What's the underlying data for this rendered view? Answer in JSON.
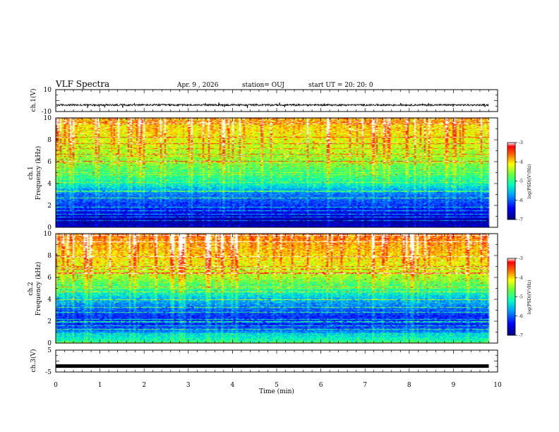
{
  "header": {
    "title": "VLF Spectra",
    "date": "Apr. 9 , 2026",
    "station": "station= OUJ",
    "start": "start UT = 20: 20: 0"
  },
  "colors": {
    "scale": [
      "#00007f",
      "#0000ff",
      "#0080ff",
      "#00ffff",
      "#80ff80",
      "#ffff00",
      "#ff8000",
      "#ff0000",
      "#ffffff"
    ]
  },
  "chart_data": [
    {
      "type": "line",
      "panel": "waveform-ch1",
      "ylabel": "ch.1(V)",
      "ylim": [
        -10,
        10
      ],
      "yticks": [
        "10",
        "-10"
      ],
      "xlim": [
        0,
        10
      ],
      "description_values": {
        "baseline": -4,
        "amplitude_range": [
          -5.5,
          -2
        ]
      }
    },
    {
      "type": "heatmap",
      "panel": "spectrogram-ch1",
      "ylabel": "ch.1 Frequency (kHz)",
      "ylabel_lines": [
        "ch.1",
        "Frequency (kHz)"
      ],
      "ylim": [
        0,
        10
      ],
      "yticks": [
        "0",
        "2",
        "4",
        "6",
        "8",
        "10"
      ],
      "xlim": [
        0,
        10
      ],
      "data_end_min": 9.8,
      "colorbar": {
        "label": "log(PSD)(V²/Hz)",
        "ticks": [
          "-3",
          "-4",
          "-5",
          "-6",
          "-7"
        ],
        "range": [
          -7,
          -3
        ]
      },
      "profile_khz": [
        0,
        0.5,
        1,
        1.5,
        2,
        2.5,
        3,
        3.5,
        4,
        5,
        6,
        7,
        8,
        9,
        10
      ],
      "profile_logpsd": [
        -6.6,
        -6.9,
        -6.6,
        -6.4,
        -6.2,
        -6.0,
        -5.9,
        -5.6,
        -5.2,
        -4.9,
        -4.6,
        -4.4,
        -4.2,
        -4.0,
        -4.0
      ]
    },
    {
      "type": "heatmap",
      "panel": "spectrogram-ch2",
      "ylabel": "ch.2 Frequency (kHz)",
      "ylabel_lines": [
        "ch.2",
        "Frequency (kHz)"
      ],
      "ylim": [
        0,
        10
      ],
      "yticks": [
        "0",
        "2",
        "4",
        "6",
        "8",
        "10"
      ],
      "xlim": [
        0,
        10
      ],
      "data_end_min": 9.8,
      "colorbar": {
        "label": "log(PSD)(V²/Hz)",
        "ticks": [
          "-3",
          "-4",
          "-5",
          "-6",
          "-7"
        ],
        "range": [
          -7,
          -3
        ]
      },
      "profile_khz": [
        0,
        0.5,
        1,
        1.5,
        2,
        2.5,
        3,
        3.5,
        4,
        5,
        6,
        7,
        8,
        9,
        10
      ],
      "profile_logpsd": [
        -5.0,
        -5.3,
        -5.8,
        -6.2,
        -6.3,
        -6.2,
        -6.0,
        -5.8,
        -5.6,
        -5.0,
        -4.5,
        -4.2,
        -4.0,
        -3.8,
        -3.6
      ]
    },
    {
      "type": "line",
      "panel": "waveform-ch3",
      "ylabel": "ch.3(V)",
      "ylim": [
        -5,
        5
      ],
      "yticks": [
        "5",
        "0",
        "-5"
      ],
      "xlim": [
        0,
        10
      ],
      "description_values": {
        "baseline": -2.3
      }
    }
  ],
  "xaxis": {
    "label": "Time (min)",
    "ticks": [
      "0",
      "1",
      "2",
      "3",
      "4",
      "5",
      "6",
      "7",
      "8",
      "9",
      "10"
    ]
  }
}
